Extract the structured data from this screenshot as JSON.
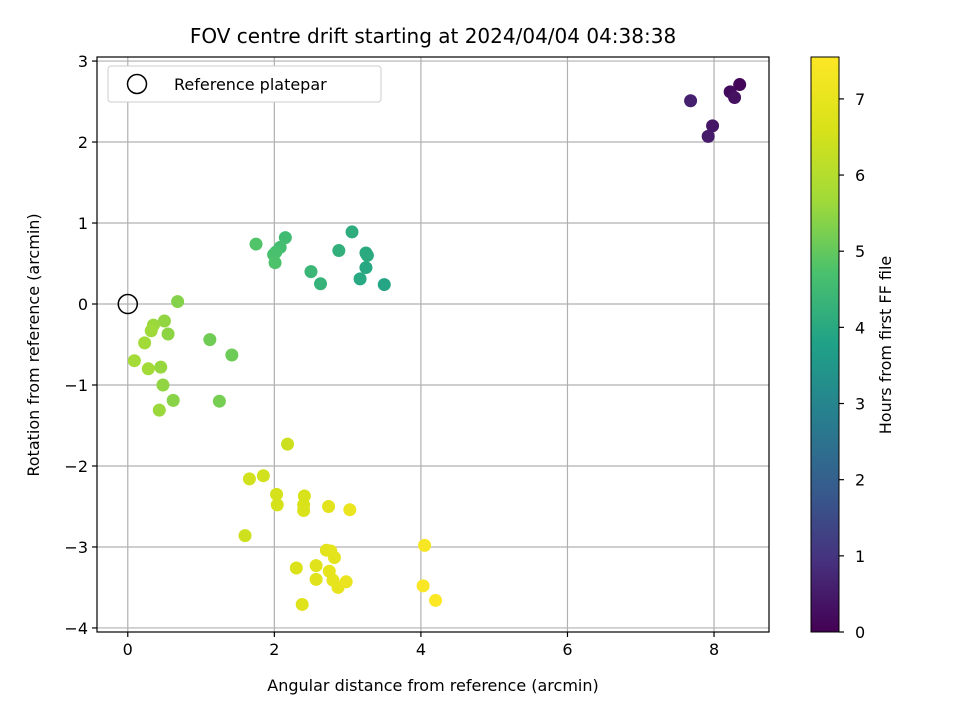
{
  "chart_data": {
    "type": "scatter",
    "title": "FOV centre drift starting at 2024/04/04 04:38:38",
    "xlabel": "Angular distance from reference (arcmin)",
    "ylabel": "Rotation from reference (arcmin)",
    "xlim": [
      -0.42,
      8.75
    ],
    "ylim": [
      -4.05,
      3.05
    ],
    "xticks": [
      0,
      2,
      4,
      6,
      8
    ],
    "yticks": [
      -4,
      -3,
      -2,
      -1,
      0,
      1,
      2,
      3
    ],
    "grid": true,
    "legend": {
      "placement": "upper-left",
      "entries": [
        "Reference platepar"
      ]
    },
    "reference_point": {
      "x": 0,
      "y": 0,
      "label": "Reference platepar"
    },
    "colorbar": {
      "label": "Hours from first FF file",
      "range": [
        0,
        7.55
      ],
      "ticks": [
        0,
        1,
        2,
        3,
        4,
        5,
        6,
        7
      ],
      "colormap": "viridis"
    },
    "points": [
      {
        "x": 8.35,
        "y": 2.71,
        "c": 0.1
      },
      {
        "x": 8.22,
        "y": 2.62,
        "c": 0.2
      },
      {
        "x": 8.28,
        "y": 2.55,
        "c": 0.3
      },
      {
        "x": 7.98,
        "y": 2.2,
        "c": 0.4
      },
      {
        "x": 7.92,
        "y": 2.07,
        "c": 0.5
      },
      {
        "x": 7.68,
        "y": 2.51,
        "c": 0.6
      },
      {
        "x": 3.5,
        "y": 0.24,
        "c": 3.9
      },
      {
        "x": 3.25,
        "y": 0.45,
        "c": 3.95
      },
      {
        "x": 3.17,
        "y": 0.31,
        "c": 4.0
      },
      {
        "x": 3.25,
        "y": 0.63,
        "c": 4.05
      },
      {
        "x": 3.27,
        "y": 0.6,
        "c": 4.05
      },
      {
        "x": 3.06,
        "y": 0.89,
        "c": 4.1
      },
      {
        "x": 2.88,
        "y": 0.66,
        "c": 4.2
      },
      {
        "x": 2.63,
        "y": 0.25,
        "c": 4.3
      },
      {
        "x": 2.5,
        "y": 0.4,
        "c": 4.4
      },
      {
        "x": 2.15,
        "y": 0.82,
        "c": 4.55
      },
      {
        "x": 2.08,
        "y": 0.7,
        "c": 4.6
      },
      {
        "x": 2.02,
        "y": 0.64,
        "c": 4.65
      },
      {
        "x": 1.99,
        "y": 0.61,
        "c": 4.7
      },
      {
        "x": 2.01,
        "y": 0.51,
        "c": 4.75
      },
      {
        "x": 1.75,
        "y": 0.74,
        "c": 4.8
      },
      {
        "x": 1.42,
        "y": -0.63,
        "c": 5.1
      },
      {
        "x": 1.12,
        "y": -0.44,
        "c": 5.15
      },
      {
        "x": 1.25,
        "y": -1.2,
        "c": 5.2
      },
      {
        "x": 0.68,
        "y": 0.03,
        "c": 5.35
      },
      {
        "x": 0.62,
        "y": -1.19,
        "c": 5.4
      },
      {
        "x": 0.55,
        "y": -0.37,
        "c": 5.45
      },
      {
        "x": 0.5,
        "y": -0.21,
        "c": 5.5
      },
      {
        "x": 0.48,
        "y": -1.0,
        "c": 5.5
      },
      {
        "x": 0.45,
        "y": -0.78,
        "c": 5.55
      },
      {
        "x": 0.43,
        "y": -1.31,
        "c": 5.6
      },
      {
        "x": 0.35,
        "y": -0.26,
        "c": 5.6
      },
      {
        "x": 0.32,
        "y": -0.33,
        "c": 5.65
      },
      {
        "x": 0.28,
        "y": -0.8,
        "c": 5.7
      },
      {
        "x": 0.23,
        "y": -0.48,
        "c": 5.7
      },
      {
        "x": 0.09,
        "y": -0.7,
        "c": 5.75
      },
      {
        "x": 2.18,
        "y": -1.73,
        "c": 6.4
      },
      {
        "x": 1.6,
        "y": -2.86,
        "c": 6.45
      },
      {
        "x": 1.66,
        "y": -2.16,
        "c": 6.5
      },
      {
        "x": 1.85,
        "y": -2.12,
        "c": 6.5
      },
      {
        "x": 2.03,
        "y": -2.35,
        "c": 6.55
      },
      {
        "x": 2.04,
        "y": -2.48,
        "c": 6.55
      },
      {
        "x": 2.41,
        "y": -2.37,
        "c": 6.6
      },
      {
        "x": 2.4,
        "y": -2.48,
        "c": 6.6
      },
      {
        "x": 2.4,
        "y": -2.55,
        "c": 6.65
      },
      {
        "x": 2.3,
        "y": -3.26,
        "c": 6.7
      },
      {
        "x": 2.38,
        "y": -3.71,
        "c": 6.75
      },
      {
        "x": 2.57,
        "y": -3.23,
        "c": 6.8
      },
      {
        "x": 2.57,
        "y": -3.4,
        "c": 6.8
      },
      {
        "x": 2.74,
        "y": -2.5,
        "c": 6.85
      },
      {
        "x": 2.71,
        "y": -3.04,
        "c": 6.85
      },
      {
        "x": 2.77,
        "y": -3.05,
        "c": 6.9
      },
      {
        "x": 2.82,
        "y": -3.13,
        "c": 6.9
      },
      {
        "x": 2.75,
        "y": -3.3,
        "c": 6.95
      },
      {
        "x": 2.8,
        "y": -3.41,
        "c": 6.95
      },
      {
        "x": 2.87,
        "y": -3.5,
        "c": 7.0
      },
      {
        "x": 2.98,
        "y": -3.43,
        "c": 7.05
      },
      {
        "x": 3.03,
        "y": -2.54,
        "c": 7.1
      },
      {
        "x": 4.05,
        "y": -2.98,
        "c": 7.4
      },
      {
        "x": 4.03,
        "y": -3.48,
        "c": 7.45
      },
      {
        "x": 4.2,
        "y": -3.66,
        "c": 7.5
      }
    ]
  }
}
